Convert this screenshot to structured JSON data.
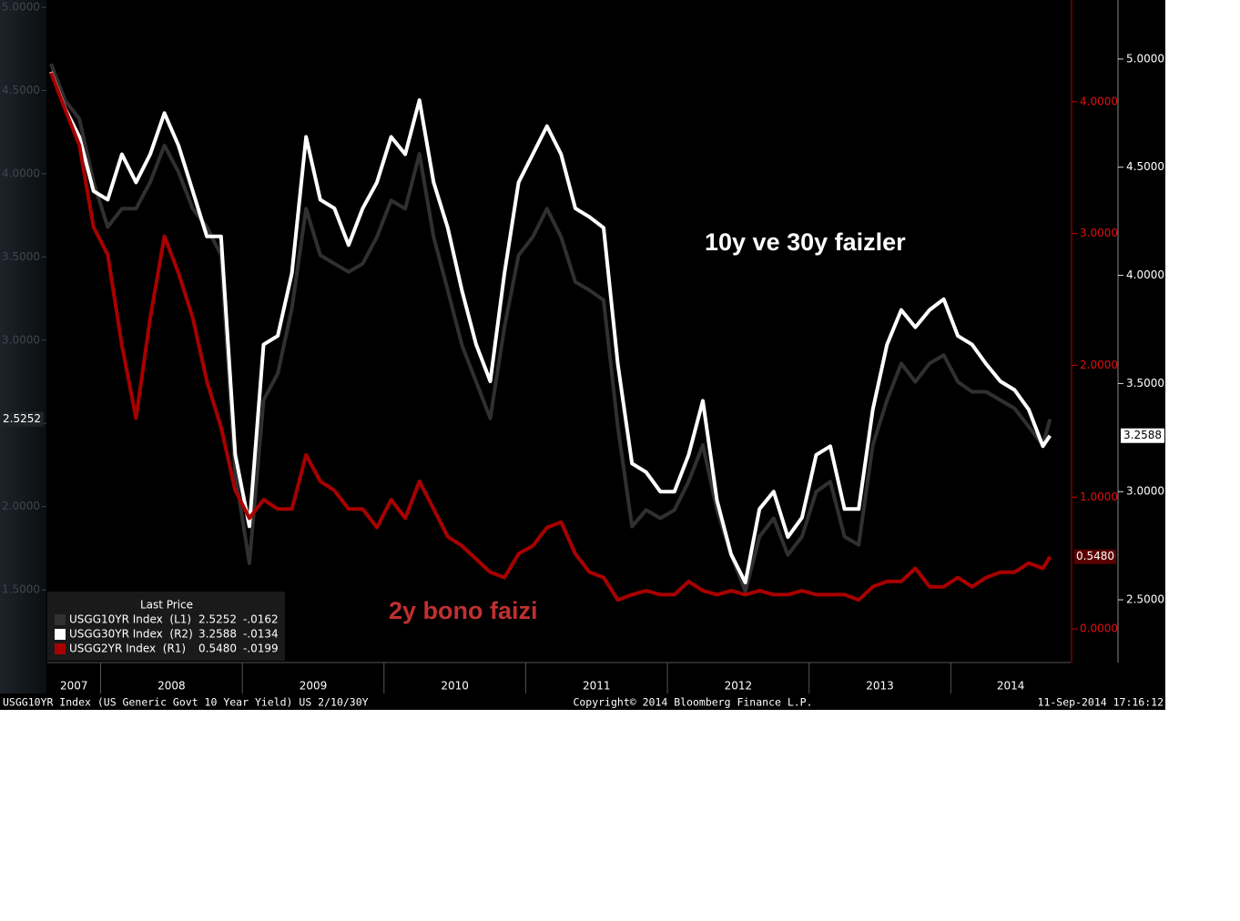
{
  "chart_data": {
    "type": "line",
    "xlim": [
      2007.624,
      2014.846
    ],
    "xticks": [
      2008,
      2009,
      2010,
      2011,
      2012,
      2013,
      2014
    ],
    "categories": [
      "2007",
      "2008",
      "2009",
      "2010",
      "2011",
      "2012",
      "2013",
      "2014"
    ],
    "ylim": [
      1.063,
      5.044
    ],
    "yticks": [
      {
        "value": 5,
        "label": "5.0000"
      },
      {
        "value": 4.5,
        "label": "4.5000"
      },
      {
        "value": 4,
        "label": "4.0000"
      },
      {
        "value": 3.5,
        "label": "3.5000"
      },
      {
        "value": 3,
        "label": "3.0000"
      },
      {
        "value": 2.5,
        "label": "2.5000"
      },
      {
        "value": 2,
        "label": "2.0000"
      },
      {
        "value": 1.5,
        "label": "1.5000"
      }
    ],
    "y2lim": [
      -0.255,
      4.772
    ],
    "y2ticks": [
      {
        "value": 4,
        "label": "4.0000"
      },
      {
        "value": 3,
        "label": "3.0000"
      },
      {
        "value": 2,
        "label": "2.0000"
      },
      {
        "value": 1,
        "label": "1.0000"
      },
      {
        "value": 0,
        "label": "0.0000"
      }
    ],
    "y3lim": [
      2.21,
      5.273
    ],
    "y3ticks": [
      {
        "value": 5,
        "label": "5.0000"
      },
      {
        "value": 4.5,
        "label": "4.5000"
      },
      {
        "value": 4,
        "label": "4.0000"
      },
      {
        "value": 3.5,
        "label": "3.5000"
      },
      {
        "value": 3,
        "label": "3.0000"
      },
      {
        "value": 2.5,
        "label": "2.5000"
      }
    ],
    "x": [
      2007.65,
      2007.75,
      2007.85,
      2007.95,
      2008.05,
      2008.15,
      2008.25,
      2008.35,
      2008.45,
      2008.55,
      2008.65,
      2008.75,
      2008.85,
      2008.95,
      2009.05,
      2009.15,
      2009.25,
      2009.35,
      2009.45,
      2009.55,
      2009.65,
      2009.75,
      2009.85,
      2009.95,
      2010.05,
      2010.15,
      2010.25,
      2010.35,
      2010.45,
      2010.55,
      2010.65,
      2010.75,
      2010.85,
      2010.95,
      2011.05,
      2011.15,
      2011.25,
      2011.35,
      2011.45,
      2011.55,
      2011.65,
      2011.75,
      2011.85,
      2011.95,
      2012.05,
      2012.15,
      2012.25,
      2012.35,
      2012.45,
      2012.55,
      2012.65,
      2012.75,
      2012.85,
      2012.95,
      2013.05,
      2013.15,
      2013.25,
      2013.35,
      2013.45,
      2013.55,
      2013.65,
      2013.75,
      2013.85,
      2013.95,
      2014.05,
      2014.15,
      2014.25,
      2014.35,
      2014.45,
      2014.55,
      2014.65,
      2014.7
    ],
    "series": [
      {
        "name": "USGG10YR Index  (L1)",
        "color": "#303030",
        "axis": "y",
        "last": {
          "value": 2.5252,
          "label": "2.5252"
        },
        "change": {
          "value": -0.0162,
          "label": "-.0162"
        },
        "values": [
          4.66,
          4.44,
          4.33,
          3.95,
          3.68,
          3.79,
          3.79,
          3.95,
          4.17,
          4.01,
          3.79,
          3.68,
          3.51,
          2.2,
          1.66,
          2.64,
          2.8,
          3.19,
          3.79,
          3.51,
          3.46,
          3.41,
          3.46,
          3.62,
          3.84,
          3.79,
          4.12,
          3.62,
          3.3,
          2.97,
          2.75,
          2.53,
          3.08,
          3.51,
          3.62,
          3.79,
          3.62,
          3.35,
          3.3,
          3.24,
          2.48,
          1.88,
          1.98,
          1.93,
          1.98,
          2.15,
          2.37,
          1.98,
          1.71,
          1.49,
          1.82,
          1.93,
          1.71,
          1.82,
          2.09,
          2.15,
          1.82,
          1.77,
          2.37,
          2.64,
          2.86,
          2.75,
          2.86,
          2.91,
          2.75,
          2.69,
          2.69,
          2.64,
          2.59,
          2.48,
          2.37,
          2.5252
        ]
      },
      {
        "name": "USGG30YR Index  (R2)",
        "color": "#ffffff",
        "axis": "y3",
        "last": {
          "value": 3.2588,
          "label": "3.2588"
        },
        "change": {
          "value": -0.0134,
          "label": "-.0134"
        },
        "values": [
          4.94,
          4.77,
          4.64,
          4.39,
          4.35,
          4.56,
          4.43,
          4.56,
          4.75,
          4.6,
          4.39,
          4.18,
          4.18,
          3.17,
          2.84,
          3.68,
          3.72,
          4.01,
          4.64,
          4.35,
          4.31,
          4.14,
          4.31,
          4.43,
          4.64,
          4.56,
          4.81,
          4.43,
          4.22,
          3.93,
          3.68,
          3.51,
          4.01,
          4.43,
          4.56,
          4.69,
          4.56,
          4.31,
          4.27,
          4.22,
          3.59,
          3.13,
          3.09,
          3.0,
          3.0,
          3.17,
          3.42,
          2.96,
          2.71,
          2.58,
          2.92,
          3.0,
          2.79,
          2.88,
          3.17,
          3.21,
          2.92,
          2.92,
          3.38,
          3.68,
          3.84,
          3.76,
          3.84,
          3.89,
          3.72,
          3.68,
          3.59,
          3.51,
          3.47,
          3.38,
          3.21,
          3.2588
        ]
      },
      {
        "name": "USGG2YR Index  (R1)",
        "color": "#a80000",
        "axis": "y2",
        "last": {
          "value": 0.548,
          "label": "0.5480"
        },
        "change": {
          "value": -0.0199,
          "label": "-.0199"
        },
        "values": [
          4.22,
          3.94,
          3.67,
          3.05,
          2.84,
          2.15,
          1.6,
          2.36,
          2.98,
          2.7,
          2.36,
          1.88,
          1.53,
          1.05,
          0.84,
          0.98,
          0.91,
          0.91,
          1.32,
          1.12,
          1.05,
          0.91,
          0.91,
          0.77,
          0.98,
          0.84,
          1.12,
          0.91,
          0.7,
          0.63,
          0.53,
          0.43,
          0.39,
          0.57,
          0.63,
          0.77,
          0.81,
          0.57,
          0.43,
          0.39,
          0.22,
          0.26,
          0.29,
          0.26,
          0.26,
          0.36,
          0.29,
          0.26,
          0.29,
          0.26,
          0.29,
          0.26,
          0.26,
          0.29,
          0.26,
          0.26,
          0.26,
          0.22,
          0.32,
          0.36,
          0.36,
          0.46,
          0.32,
          0.32,
          0.39,
          0.32,
          0.39,
          0.43,
          0.43,
          0.5,
          0.46,
          0.548
        ]
      }
    ],
    "legend_title": "Last Price",
    "annotations": [
      "10y ve 30y faizler",
      "2y bono faizi"
    ],
    "footer": {
      "left": "USGG10YR Index (US Generic Govt 10 Year Yield) US 2/10/30Y",
      "center": "Copyright© 2014 Bloomberg Finance L.P.",
      "right": "11-Sep-2014 17:16:12"
    }
  }
}
